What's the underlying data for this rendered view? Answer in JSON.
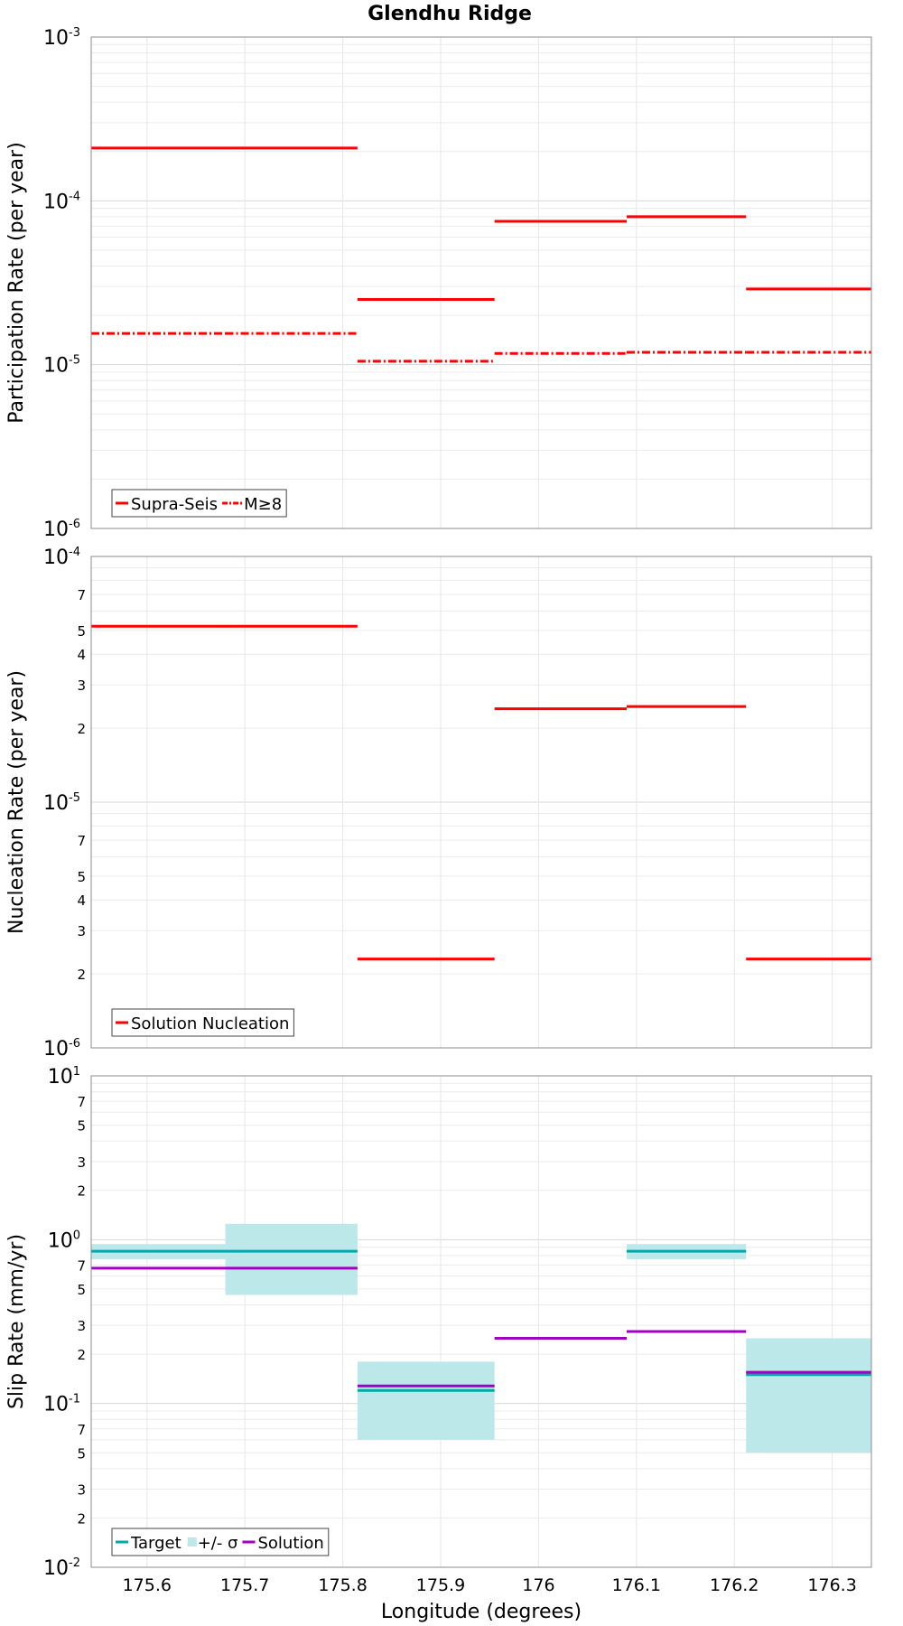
{
  "chart_data": {
    "title": "Glendhu Ridge",
    "xlabel": "Longitude (degrees)",
    "xlim": [
      175.543,
      176.34
    ],
    "x_ticks": [
      "175.6",
      "175.7",
      "175.8",
      "175.9",
      "176",
      "176.1",
      "176.2",
      "176.3"
    ],
    "x_tick_values": [
      175.6,
      175.7,
      175.8,
      175.9,
      176.0,
      176.1,
      176.2,
      176.3
    ],
    "panels": [
      {
        "type": "line",
        "ylabel": "Participation Rate (per year)",
        "yscale": "log",
        "ylim": [
          1e-06,
          0.001
        ],
        "major_ticks": [
          {
            "base": "10",
            "exp": "-6"
          },
          {
            "base": "10",
            "exp": "-5"
          },
          {
            "base": "10",
            "exp": "-4"
          },
          {
            "base": "10",
            "exp": "-3"
          }
        ],
        "minor_tick_labels": [],
        "grid": true,
        "legend": {
          "position": "bottom-left",
          "entries": [
            {
              "label": "Supra-Seis",
              "color": "#ff0000",
              "style": "solid"
            },
            {
              "label": "M≥8",
              "color": "#ff0000",
              "style": "dashdot"
            }
          ]
        },
        "series": [
          {
            "name": "Supra-Seis",
            "color": "#ff0000",
            "style": "solid",
            "segments": [
              {
                "x": [
                  175.543,
                  175.68
                ],
                "y": 0.00021
              },
              {
                "x": [
                  175.68,
                  175.815
                ],
                "y": 0.00021
              },
              {
                "x": [
                  175.815,
                  175.955
                ],
                "y": 2.5e-05
              },
              {
                "x": [
                  175.955,
                  176.09
                ],
                "y": 7.5e-05
              },
              {
                "x": [
                  176.09,
                  176.212
                ],
                "y": 8e-05
              },
              {
                "x": [
                  176.212,
                  176.34
                ],
                "y": 2.9e-05
              }
            ]
          },
          {
            "name": "M≥8",
            "color": "#ff0000",
            "style": "dashdot",
            "segments": [
              {
                "x": [
                  175.543,
                  175.68
                ],
                "y": 1.55e-05
              },
              {
                "x": [
                  175.68,
                  175.815
                ],
                "y": 1.55e-05
              },
              {
                "x": [
                  175.815,
                  175.955
                ],
                "y": 1.05e-05
              },
              {
                "x": [
                  175.955,
                  176.09
                ],
                "y": 1.17e-05
              },
              {
                "x": [
                  176.09,
                  176.212
                ],
                "y": 1.19e-05
              },
              {
                "x": [
                  176.212,
                  176.34
                ],
                "y": 1.19e-05
              }
            ]
          }
        ]
      },
      {
        "type": "line",
        "ylabel": "Nucleation Rate (per year)",
        "yscale": "log",
        "ylim": [
          1e-06,
          0.0001
        ],
        "major_ticks": [
          {
            "base": "10",
            "exp": "-6"
          },
          {
            "base": "10",
            "exp": "-5"
          },
          {
            "base": "10",
            "exp": "-4"
          }
        ],
        "minor_tick_labels": [
          "2",
          "3",
          "4",
          "5",
          "7"
        ],
        "grid": true,
        "legend": {
          "position": "bottom-left",
          "entries": [
            {
              "label": "Solution Nucleation",
              "color": "#ff0000",
              "style": "solid"
            }
          ]
        },
        "series": [
          {
            "name": "Solution Nucleation",
            "color": "#ff0000",
            "style": "solid",
            "segments": [
              {
                "x": [
                  175.543,
                  175.68
                ],
                "y": 5.2e-05
              },
              {
                "x": [
                  175.68,
                  175.815
                ],
                "y": 5.2e-05
              },
              {
                "x": [
                  175.815,
                  175.955
                ],
                "y": 2.3e-06
              },
              {
                "x": [
                  175.955,
                  176.09
                ],
                "y": 2.4e-05
              },
              {
                "x": [
                  176.09,
                  176.212
                ],
                "y": 2.45e-05
              },
              {
                "x": [
                  176.212,
                  176.34
                ],
                "y": 2.3e-06
              }
            ]
          }
        ]
      },
      {
        "type": "line",
        "ylabel": "Slip Rate (mm/yr)",
        "yscale": "log",
        "ylim": [
          0.01,
          10
        ],
        "major_ticks": [
          {
            "base": "10",
            "exp": "-2"
          },
          {
            "base": "10",
            "exp": "-1"
          },
          {
            "base": "10",
            "exp": "0"
          },
          {
            "base": "10",
            "exp": "1"
          }
        ],
        "minor_tick_labels": [
          "2",
          "3",
          "5",
          "7"
        ],
        "grid": true,
        "legend": {
          "position": "bottom-left",
          "entries": [
            {
              "label": "Target",
              "color": "#00a8a8",
              "style": "solid"
            },
            {
              "label": "+/- σ",
              "color": "#bde8ea",
              "style": "box"
            },
            {
              "label": "Solution",
              "color": "#a000c0",
              "style": "solid"
            }
          ]
        },
        "bands": [
          {
            "name": "+/- σ",
            "color": "#bde8ea",
            "segments": [
              {
                "x": [
                  175.543,
                  175.68
                ],
                "low": 0.76,
                "high": 0.94
              },
              {
                "x": [
                  175.68,
                  175.815
                ],
                "low": 0.46,
                "high": 1.25
              },
              {
                "x": [
                  175.815,
                  175.955
                ],
                "low": 0.06,
                "high": 0.18
              },
              {
                "x": [
                  176.09,
                  176.212
                ],
                "low": 0.76,
                "high": 0.94
              },
              {
                "x": [
                  176.212,
                  176.34
                ],
                "low": 0.05,
                "high": 0.25
              }
            ]
          }
        ],
        "series": [
          {
            "name": "Target",
            "color": "#00a8a8",
            "style": "solid",
            "segments": [
              {
                "x": [
                  175.543,
                  175.68
                ],
                "y": 0.85
              },
              {
                "x": [
                  175.68,
                  175.815
                ],
                "y": 0.85
              },
              {
                "x": [
                  175.815,
                  175.955
                ],
                "y": 0.12
              },
              {
                "x": [
                  176.09,
                  176.212
                ],
                "y": 0.85
              },
              {
                "x": [
                  176.212,
                  176.34
                ],
                "y": 0.15
              }
            ]
          },
          {
            "name": "Solution",
            "color": "#a000c0",
            "style": "solid",
            "segments": [
              {
                "x": [
                  175.543,
                  175.68
                ],
                "y": 0.67
              },
              {
                "x": [
                  175.68,
                  175.815
                ],
                "y": 0.67
              },
              {
                "x": [
                  175.815,
                  175.955
                ],
                "y": 0.128
              },
              {
                "x": [
                  175.955,
                  176.09
                ],
                "y": 0.25
              },
              {
                "x": [
                  176.09,
                  176.212
                ],
                "y": 0.275
              },
              {
                "x": [
                  176.212,
                  176.34
                ],
                "y": 0.155
              }
            ]
          }
        ]
      }
    ]
  }
}
